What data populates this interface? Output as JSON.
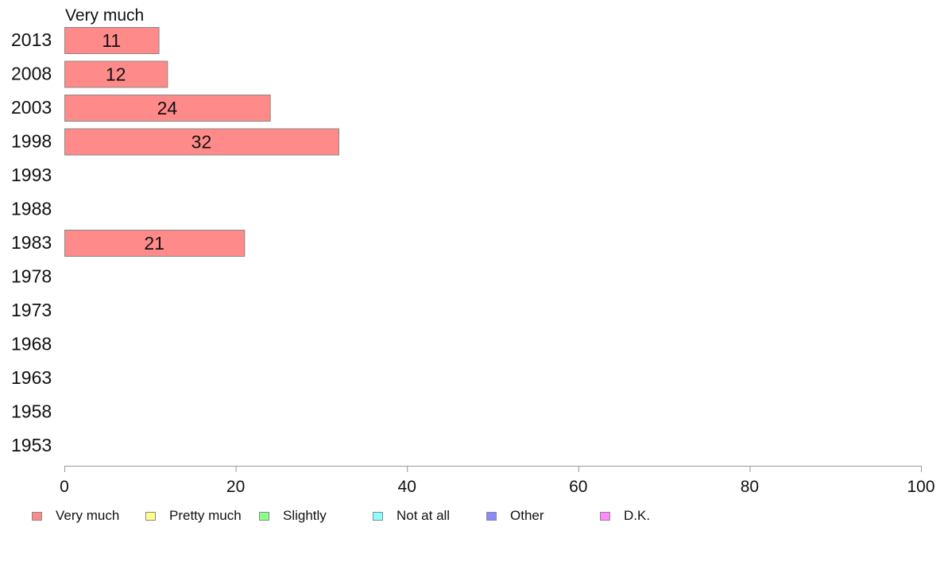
{
  "chart_data": {
    "type": "bar",
    "orientation": "horizontal",
    "title": "Very much",
    "categories": [
      "2013",
      "2008",
      "2003",
      "1998",
      "1993",
      "1988",
      "1983",
      "1978",
      "1973",
      "1968",
      "1963",
      "1958",
      "1953"
    ],
    "series": [
      {
        "name": "Very much",
        "color": "#FF8A8A",
        "values": [
          11,
          12,
          24,
          32,
          null,
          null,
          21,
          null,
          null,
          null,
          null,
          null,
          null
        ]
      }
    ],
    "xlim": [
      0,
      100
    ],
    "xticks": [
      0,
      20,
      40,
      60,
      80,
      100
    ],
    "grid": false,
    "legend_position": "bottom"
  },
  "legend": [
    {
      "label": "Very much",
      "color": "#FF8A8A"
    },
    {
      "label": "Pretty much",
      "color": "#FFFF8A"
    },
    {
      "label": "Slightly",
      "color": "#8AFF8A"
    },
    {
      "label": "Not at all",
      "color": "#8AFFFF"
    },
    {
      "label": "Other",
      "color": "#8A8AFF"
    },
    {
      "label": "D.K.",
      "color": "#FF8AFF"
    }
  ]
}
